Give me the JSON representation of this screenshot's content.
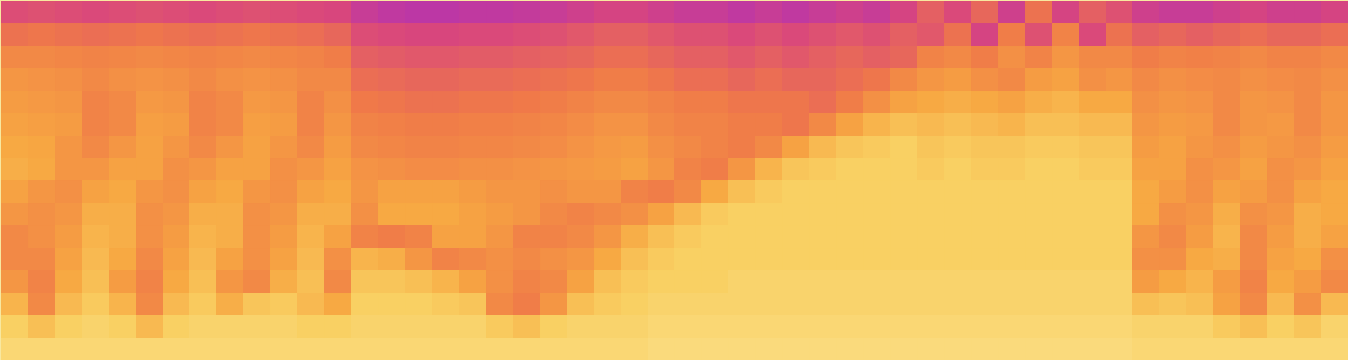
{
  "chart_data": {
    "type": "heatmap",
    "tick_labels": false,
    "color_domain": [
      0,
      100
    ],
    "cells": [
      [
        45,
        46,
        45,
        44,
        45,
        46,
        45,
        44,
        45,
        46,
        45,
        44,
        43,
        38,
        36,
        35,
        35,
        36,
        36,
        37,
        38,
        40,
        42,
        42,
        40,
        38,
        38,
        36,
        38,
        36,
        38,
        40,
        38,
        42,
        50,
        44,
        52,
        40,
        55,
        42,
        50,
        46,
        40,
        38,
        38,
        40,
        42,
        40,
        40,
        42
      ],
      [
        55,
        56,
        55,
        54,
        55,
        56,
        55,
        54,
        55,
        56,
        55,
        54,
        52,
        45,
        44,
        43,
        43,
        44,
        44,
        45,
        46,
        48,
        50,
        50,
        48,
        46,
        46,
        44,
        46,
        44,
        46,
        48,
        46,
        50,
        48,
        55,
        42,
        58,
        46,
        60,
        44,
        55,
        50,
        52,
        50,
        52,
        54,
        52,
        52,
        54
      ],
      [
        62,
        62,
        61,
        60,
        61,
        62,
        61,
        60,
        61,
        62,
        61,
        60,
        58,
        50,
        49,
        48,
        48,
        49,
        49,
        50,
        51,
        52,
        54,
        54,
        52,
        50,
        50,
        48,
        50,
        48,
        50,
        52,
        50,
        52,
        60,
        62,
        58,
        64,
        60,
        66,
        62,
        62,
        58,
        60,
        59,
        60,
        62,
        60,
        60,
        62
      ],
      [
        66,
        65,
        64,
        62,
        64,
        65,
        64,
        62,
        64,
        65,
        64,
        62,
        62,
        54,
        53,
        52,
        52,
        53,
        53,
        54,
        55,
        56,
        58,
        58,
        56,
        54,
        54,
        52,
        54,
        52,
        52,
        54,
        56,
        62,
        66,
        68,
        64,
        62,
        68,
        70,
        64,
        66,
        62,
        64,
        63,
        62,
        64,
        63,
        62,
        64
      ],
      [
        68,
        67,
        66,
        60,
        62,
        67,
        66,
        60,
        62,
        67,
        66,
        60,
        64,
        57,
        56,
        55,
        55,
        56,
        56,
        57,
        58,
        60,
        62,
        62,
        60,
        58,
        58,
        56,
        56,
        56,
        54,
        58,
        64,
        70,
        72,
        74,
        72,
        70,
        74,
        76,
        72,
        72,
        64,
        66,
        65,
        62,
        66,
        65,
        62,
        66
      ],
      [
        70,
        69,
        68,
        60,
        62,
        69,
        68,
        60,
        62,
        69,
        68,
        60,
        66,
        60,
        59,
        58,
        58,
        59,
        59,
        60,
        61,
        63,
        65,
        65,
        62,
        60,
        60,
        58,
        58,
        56,
        62,
        70,
        76,
        80,
        78,
        80,
        78,
        76,
        80,
        80,
        78,
        78,
        66,
        68,
        67,
        62,
        66,
        67,
        62,
        66
      ],
      [
        72,
        71,
        66,
        62,
        66,
        70,
        66,
        62,
        66,
        70,
        66,
        62,
        68,
        62,
        61,
        60,
        60,
        61,
        61,
        62,
        63,
        65,
        67,
        68,
        64,
        62,
        60,
        58,
        62,
        70,
        78,
        82,
        84,
        86,
        82,
        84,
        82,
        82,
        84,
        84,
        82,
        82,
        68,
        70,
        66,
        64,
        68,
        66,
        64,
        68
      ],
      [
        74,
        72,
        66,
        66,
        70,
        70,
        64,
        66,
        70,
        70,
        64,
        66,
        70,
        65,
        64,
        63,
        63,
        64,
        64,
        65,
        66,
        67,
        68,
        70,
        66,
        60,
        58,
        66,
        76,
        82,
        84,
        86,
        86,
        86,
        84,
        86,
        84,
        84,
        86,
        86,
        84,
        84,
        70,
        70,
        64,
        66,
        70,
        64,
        66,
        70
      ],
      [
        70,
        66,
        64,
        70,
        72,
        66,
        64,
        70,
        72,
        66,
        64,
        70,
        72,
        66,
        70,
        70,
        70,
        68,
        66,
        66,
        64,
        66,
        66,
        60,
        58,
        62,
        72,
        80,
        84,
        86,
        86,
        86,
        86,
        86,
        86,
        86,
        86,
        86,
        86,
        86,
        86,
        86,
        72,
        68,
        64,
        70,
        68,
        64,
        70,
        72
      ],
      [
        66,
        64,
        66,
        74,
        74,
        64,
        66,
        74,
        74,
        64,
        66,
        74,
        74,
        64,
        72,
        72,
        72,
        70,
        68,
        66,
        62,
        60,
        62,
        64,
        70,
        78,
        84,
        86,
        86,
        86,
        86,
        86,
        86,
        86,
        86,
        86,
        86,
        86,
        86,
        86,
        86,
        86,
        72,
        64,
        66,
        74,
        64,
        66,
        74,
        72
      ],
      [
        62,
        64,
        68,
        76,
        74,
        64,
        68,
        76,
        74,
        64,
        68,
        76,
        70,
        60,
        58,
        60,
        70,
        70,
        66,
        60,
        60,
        62,
        66,
        74,
        80,
        84,
        86,
        86,
        86,
        86,
        86,
        86,
        86,
        86,
        86,
        86,
        86,
        86,
        86,
        86,
        86,
        86,
        66,
        62,
        68,
        76,
        62,
        68,
        74,
        70
      ],
      [
        62,
        62,
        70,
        78,
        72,
        62,
        70,
        78,
        70,
        64,
        70,
        78,
        64,
        76,
        74,
        66,
        60,
        62,
        64,
        62,
        64,
        66,
        72,
        80,
        84,
        86,
        86,
        86,
        86,
        86,
        86,
        86,
        86,
        86,
        86,
        86,
        86,
        86,
        86,
        86,
        86,
        86,
        64,
        64,
        72,
        74,
        62,
        70,
        72,
        64
      ],
      [
        66,
        60,
        72,
        80,
        68,
        60,
        72,
        80,
        66,
        62,
        74,
        80,
        62,
        82,
        82,
        80,
        76,
        70,
        64,
        60,
        62,
        70,
        80,
        84,
        86,
        86,
        86,
        88,
        88,
        88,
        88,
        88,
        88,
        88,
        88,
        88,
        88,
        88,
        88,
        88,
        88,
        88,
        68,
        72,
        76,
        68,
        60,
        72,
        68,
        62
      ],
      [
        76,
        62,
        78,
        84,
        76,
        62,
        78,
        84,
        74,
        82,
        84,
        78,
        72,
        86,
        86,
        86,
        84,
        82,
        62,
        58,
        66,
        80,
        84,
        86,
        88,
        88,
        88,
        88,
        88,
        88,
        88,
        88,
        88,
        88,
        88,
        88,
        88,
        88,
        88,
        88,
        88,
        88,
        80,
        82,
        80,
        70,
        62,
        78,
        64,
        78
      ],
      [
        86,
        80,
        86,
        88,
        86,
        78,
        86,
        88,
        88,
        88,
        88,
        86,
        86,
        88,
        88,
        88,
        88,
        88,
        84,
        80,
        86,
        88,
        88,
        88,
        90,
        90,
        90,
        90,
        90,
        90,
        90,
        90,
        90,
        90,
        90,
        90,
        90,
        90,
        90,
        90,
        90,
        90,
        88,
        88,
        88,
        84,
        80,
        86,
        82,
        88
      ],
      [
        90,
        90,
        90,
        90,
        90,
        90,
        90,
        90,
        90,
        90,
        90,
        90,
        90,
        90,
        90,
        90,
        90,
        90,
        90,
        90,
        90,
        90,
        90,
        90,
        92,
        92,
        92,
        92,
        92,
        92,
        92,
        92,
        92,
        92,
        92,
        92,
        92,
        92,
        92,
        92,
        92,
        92,
        90,
        90,
        90,
        90,
        90,
        90,
        90,
        90
      ]
    ]
  }
}
